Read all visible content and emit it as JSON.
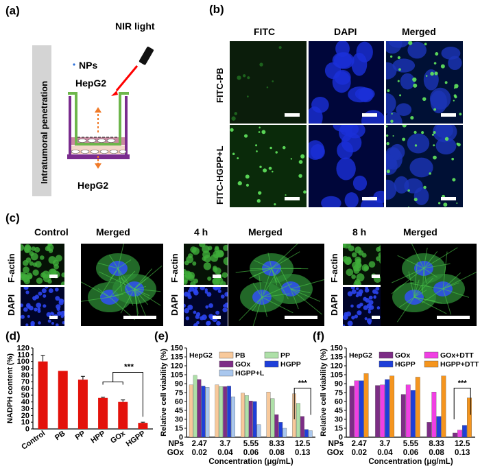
{
  "panel_a": {
    "label": "(a)",
    "nir_label": "NIR light",
    "side_label": "Intratumoral penetration",
    "nps_label": "NPs",
    "top_cell_label": "HepG2",
    "bottom_cell_label": "HepG2"
  },
  "panel_b": {
    "label": "(b)",
    "col_headers": [
      "FITC",
      "DAPI",
      "Merged"
    ],
    "row_labels": [
      "FITC-PB",
      "FITC-HGPP+L"
    ]
  },
  "panel_c": {
    "label": "(c)",
    "groups": [
      {
        "title": "Control",
        "merged": "Merged"
      },
      {
        "title": "4 h",
        "merged": "Merged"
      },
      {
        "title": "8 h",
        "merged": "Merged"
      }
    ],
    "row_labels": [
      "F-actin",
      "DAPI"
    ]
  },
  "chart_data": [
    {
      "panel": "(d)",
      "type": "bar",
      "title": "",
      "ylabel": "NADPH content (%)",
      "xlabel": "",
      "categories": [
        "Control",
        "PB",
        "PP",
        "HPP",
        "GOx",
        "HGPP"
      ],
      "values": [
        100,
        86,
        73,
        46,
        40,
        9
      ],
      "errors": [
        9,
        0,
        5,
        1,
        3,
        1
      ],
      "ylim": [
        0,
        120
      ],
      "yticks": [
        0,
        10,
        20,
        30,
        40,
        50,
        60,
        70,
        80,
        90,
        100,
        110,
        120
      ],
      "color": "#e3120b",
      "significance": "***"
    },
    {
      "panel": "(e)",
      "type": "bar",
      "inset_label": "HepG2",
      "ylabel": "Relative cell viability (%)",
      "xlabel": "Concentration (μg/mL)",
      "row_labels": [
        "NPs",
        "GOx"
      ],
      "categories_nps": [
        "2.47",
        "3.7",
        "5.55",
        "8.33",
        "12.5"
      ],
      "categories_gox": [
        "0.02",
        "0.04",
        "0.06",
        "0.08",
        "0.13"
      ],
      "ylim": [
        0,
        150
      ],
      "yticks": [
        0,
        15,
        30,
        45,
        60,
        75,
        90,
        105,
        120,
        135,
        150
      ],
      "significance": "***",
      "series": [
        {
          "name": "PB",
          "color": "#f8c99b",
          "values": [
            88,
            88,
            74,
            76,
            73
          ]
        },
        {
          "name": "PP",
          "color": "#aee0a8",
          "values": [
            104,
            85,
            70,
            65,
            57
          ]
        },
        {
          "name": "GOx",
          "color": "#7d2d86",
          "values": [
            97,
            85,
            61,
            38,
            35
          ]
        },
        {
          "name": "HGPP",
          "color": "#1e3fd9",
          "values": [
            86,
            86,
            60,
            25,
            13
          ]
        },
        {
          "name": "HGPP+L",
          "color": "#a9c7ee",
          "values": [
            84,
            68,
            21,
            15,
            11
          ]
        }
      ]
    },
    {
      "panel": "(f)",
      "type": "bar",
      "inset_label": "HepG2",
      "ylabel": "Relative cell viability (%)",
      "xlabel": "Concentration (μg/mL)",
      "row_labels": [
        "NPs",
        "GOx"
      ],
      "categories_nps": [
        "2.47",
        "3.7",
        "5.55",
        "8.33",
        "12.5"
      ],
      "categories_gox": [
        "0.02",
        "0.04",
        "0.06",
        "0.08",
        "0.13"
      ],
      "ylim": [
        0,
        150
      ],
      "yticks": [
        0,
        15,
        30,
        45,
        60,
        75,
        90,
        105,
        120,
        135,
        150
      ],
      "significance": "***",
      "series": [
        {
          "name": "GOx",
          "color": "#7d2d86",
          "values": [
            86,
            87,
            72,
            25,
            7
          ]
        },
        {
          "name": "GOx+DTT",
          "color": "#f03fe3",
          "values": [
            95,
            88,
            88,
            76,
            12
          ]
        },
        {
          "name": "HGPP",
          "color": "#1e3fd9",
          "values": [
            95,
            97,
            79,
            35,
            20
          ]
        },
        {
          "name": "HGPP+DTT",
          "color": "#f5951e",
          "values": [
            107,
            103,
            101,
            103,
            66
          ]
        }
      ]
    }
  ]
}
